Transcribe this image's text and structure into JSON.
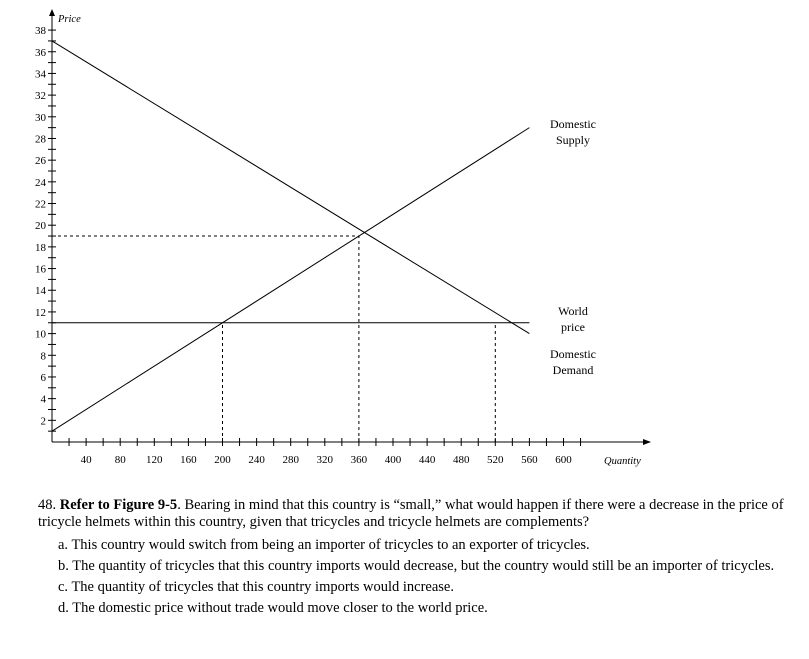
{
  "chart_data": {
    "type": "line",
    "title": "",
    "xlabel": "Quantity",
    "ylabel": "Price",
    "xlim": [
      0,
      640
    ],
    "ylim": [
      0,
      40
    ],
    "x_ticks": [
      40,
      80,
      120,
      160,
      200,
      240,
      280,
      320,
      360,
      400,
      440,
      480,
      520,
      560,
      600
    ],
    "y_ticks": [
      2,
      4,
      6,
      8,
      10,
      12,
      14,
      16,
      18,
      20,
      22,
      24,
      26,
      28,
      30,
      32,
      34,
      36,
      38
    ],
    "series": [
      {
        "name": "Domestic Supply",
        "label_lines": [
          "Domestic",
          "Supply"
        ],
        "points": [
          [
            0,
            1
          ],
          [
            560,
            29
          ]
        ]
      },
      {
        "name": "Domestic Demand",
        "label_lines": [
          "Domestic",
          "Demand"
        ],
        "points": [
          [
            0,
            37
          ],
          [
            560,
            10
          ]
        ]
      },
      {
        "name": "World price",
        "label_lines": [
          "World",
          "price"
        ],
        "points": [
          [
            0,
            11
          ],
          [
            560,
            11
          ]
        ]
      }
    ],
    "reference_lines": [
      {
        "from": [
          0,
          19
        ],
        "to": [
          360,
          19
        ]
      },
      {
        "from": [
          360,
          0
        ],
        "to": [
          360,
          19
        ]
      },
      {
        "from": [
          200,
          0
        ],
        "to": [
          200,
          11
        ]
      },
      {
        "from": [
          520,
          0
        ],
        "to": [
          520,
          11
        ]
      }
    ],
    "grid": false
  },
  "question": {
    "number": "48.",
    "ref": "Refer to Figure 9-5",
    "text": ". Bearing in mind that this country is “small,” what would happen if there were a decrease in the price of tricycle helmets within this country, given that tricycles and tricycle helmets are complements?",
    "options": [
      {
        "letter": "a.",
        "text": "This country would switch from being an importer of tricycles to an exporter of tricycles."
      },
      {
        "letter": "b.",
        "text": "The quantity of tricycles that this country imports would decrease, but the country would still be an importer of tricycles."
      },
      {
        "letter": "c.",
        "text": "The quantity of tricycles that this country imports would increase."
      },
      {
        "letter": "d.",
        "text": "The domestic price without trade would move closer to the world price."
      }
    ]
  }
}
